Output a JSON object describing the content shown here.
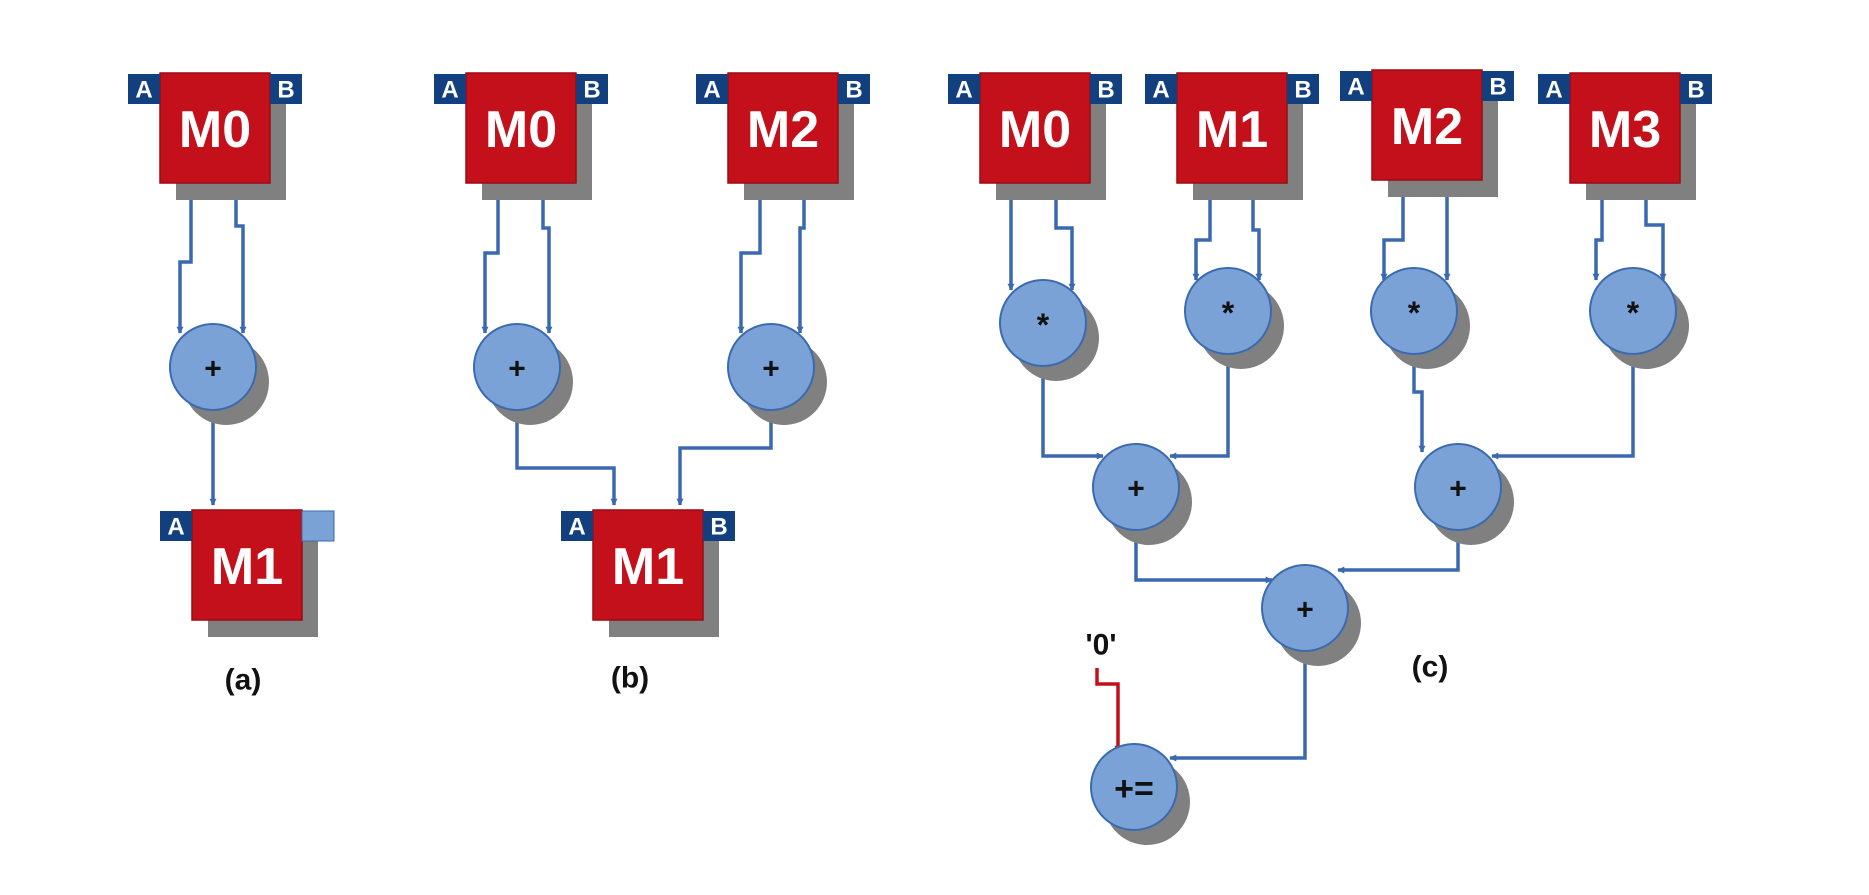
{
  "diagram": {
    "colors": {
      "memory": "#c4101b",
      "memory_border": "#9c0a12",
      "port": "#123f7e",
      "operator": "#7aa2d6",
      "operator_border": "#3a6ab0",
      "wire": "#3a69b0",
      "const_wire": "#c4101b",
      "shadow": "#808080",
      "port_stub": "#7aa2d6"
    },
    "panels": {
      "a": {
        "caption": "(a)",
        "mem_top": {
          "label": "M0",
          "port_a": "A",
          "port_b": "B"
        },
        "op": {
          "label": "+"
        },
        "mem_out": {
          "label": "M1",
          "port_a": "A"
        }
      },
      "b": {
        "caption": "(b)",
        "mem_left": {
          "label": "M0",
          "port_a": "A",
          "port_b": "B"
        },
        "mem_right": {
          "label": "M2",
          "port_a": "A",
          "port_b": "B"
        },
        "op_left": {
          "label": "+"
        },
        "op_right": {
          "label": "+"
        },
        "mem_out": {
          "label": "M1",
          "port_a": "A",
          "port_b": "B"
        }
      },
      "c": {
        "caption": "(c)",
        "mems": [
          {
            "label": "M0",
            "port_a": "A",
            "port_b": "B"
          },
          {
            "label": "M1",
            "port_a": "A",
            "port_b": "B"
          },
          {
            "label": "M2",
            "port_a": "A",
            "port_b": "B"
          },
          {
            "label": "M3",
            "port_a": "A",
            "port_b": "B"
          }
        ],
        "mults": [
          {
            "label": "*"
          },
          {
            "label": "*"
          },
          {
            "label": "*"
          },
          {
            "label": "*"
          }
        ],
        "adds_level1": [
          {
            "label": "+"
          },
          {
            "label": "+"
          }
        ],
        "add_level2": {
          "label": "+"
        },
        "accumulator": {
          "label": "+="
        },
        "constant": "'0'"
      }
    }
  }
}
